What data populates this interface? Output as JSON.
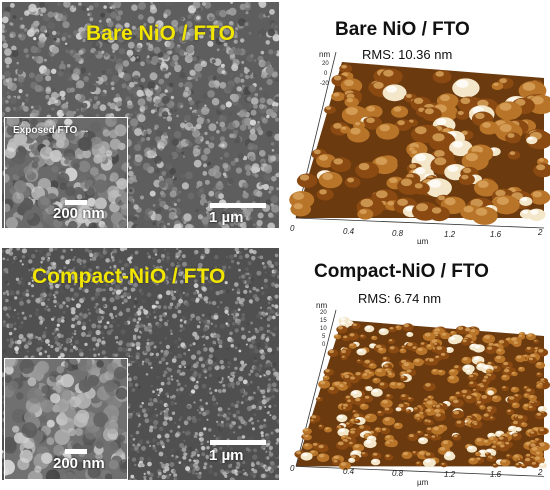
{
  "top": {
    "sem_title": "Bare NiO / FTO",
    "inset_label": "Exposed FTO →",
    "inset_scale": "200 nm",
    "scale": "1 µm",
    "afm_title": "Bare NiO / FTO",
    "rms": "RMS: 10.36 nm",
    "x_ticks": [
      "0",
      "0.4",
      "0.8",
      "1.2",
      "1.6",
      "2"
    ],
    "x_unit": "µm",
    "z_unit": "nm",
    "z_ticks": [
      "20",
      "0",
      "-20"
    ]
  },
  "bottom": {
    "sem_title": "Compact-NiO / FTO",
    "inset_scale": "200 nm",
    "scale": "1 µm",
    "afm_title": "Compact-NiO / FTO",
    "rms": "RMS: 6.74 nm",
    "x_ticks": [
      "0",
      "0.4",
      "0.8",
      "1.2",
      "1.6",
      "2"
    ],
    "x_unit": "µm",
    "z_unit": "nm",
    "z_ticks": [
      "20",
      "15",
      "10",
      "5",
      "0"
    ]
  },
  "colors": {
    "label_yellow": "#f2e600",
    "afm_brown": "#8a4a12",
    "afm_peak": "#f4e6c8"
  }
}
